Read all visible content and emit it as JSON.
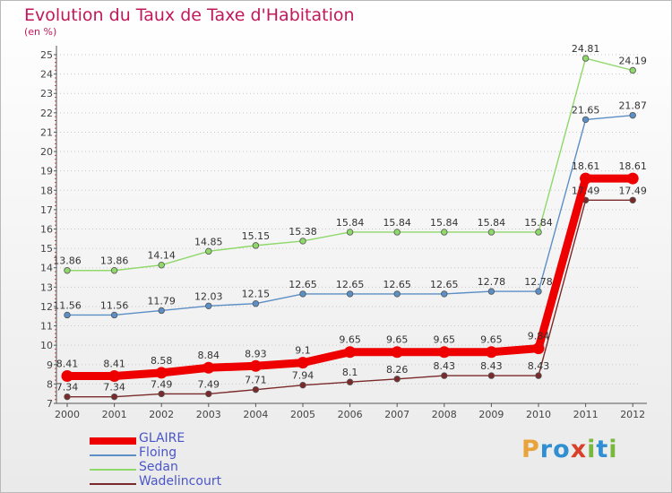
{
  "title": "Evolution du Taux de Taxe d'Habitation",
  "unit": "(en %)",
  "logo": {
    "letters": [
      "P",
      "r",
      "o",
      "x",
      "i",
      "t",
      "i"
    ],
    "colors": [
      "#e8a33a",
      "#2f8fd2",
      "#2f8fd2",
      "#d9402b",
      "#78b83c",
      "#2f8fd2",
      "#78b83c"
    ]
  },
  "chart_data": {
    "type": "line",
    "x": [
      "2000",
      "2001",
      "2002",
      "2003",
      "2004",
      "2005",
      "2006",
      "2007",
      "2008",
      "2009",
      "2010",
      "2011",
      "2012"
    ],
    "ylim": [
      7,
      25
    ],
    "yticks": [
      "7",
      "8",
      "9",
      "10",
      "11",
      "12",
      "13",
      "14",
      "15",
      "16",
      "17",
      "18",
      "19",
      "20",
      "21",
      "22",
      "23",
      "24",
      "25"
    ],
    "grid": "horizontal dotted",
    "legend_placement": "bottom-left",
    "series": [
      {
        "name": "GLAIRE",
        "color": "#ee0000",
        "values": [
          8.41,
          8.41,
          8.58,
          8.84,
          8.93,
          9.1,
          9.65,
          9.65,
          9.65,
          9.65,
          9.84,
          18.61,
          18.61
        ],
        "labels": [
          "8.41",
          "8.41",
          "8.58",
          "8.84",
          "8.93",
          "9.1",
          "9.65",
          "9.65",
          "9.65",
          "9.65",
          "9.84",
          "18.61",
          "18.61"
        ]
      },
      {
        "name": "Floing",
        "color": "#5b8fc6",
        "values": [
          11.56,
          11.56,
          11.79,
          12.03,
          12.15,
          12.65,
          12.65,
          12.65,
          12.65,
          12.78,
          12.78,
          21.65,
          21.87
        ],
        "labels": [
          "11.56",
          "11.56",
          "11.79",
          "12.03",
          "12.15",
          "12.65",
          "12.65",
          "12.65",
          "12.65",
          "12.78",
          "12.78",
          "21.65",
          "21.87"
        ]
      },
      {
        "name": "Sedan",
        "color": "#8fd86a",
        "values": [
          13.86,
          13.86,
          14.14,
          14.85,
          15.15,
          15.38,
          15.84,
          15.84,
          15.84,
          15.84,
          15.84,
          24.81,
          24.19
        ],
        "labels": [
          "13.86",
          "13.86",
          "14.14",
          "14.85",
          "15.15",
          "15.38",
          "15.84",
          "15.84",
          "15.84",
          "15.84",
          "15.84",
          "24.81",
          "24.19"
        ]
      },
      {
        "name": "Wadelincourt",
        "color": "#7a2a2a",
        "values": [
          7.34,
          7.34,
          7.49,
          7.49,
          7.71,
          7.94,
          8.1,
          8.26,
          8.43,
          8.43,
          8.43,
          17.49,
          17.49
        ],
        "labels": [
          "7.34",
          "7.34",
          "7.49",
          "7.49",
          "7.71",
          "7.94",
          "8.1",
          "8.26",
          "8.43",
          "8.43",
          "8.43",
          "17.49",
          "17.49"
        ]
      }
    ]
  }
}
